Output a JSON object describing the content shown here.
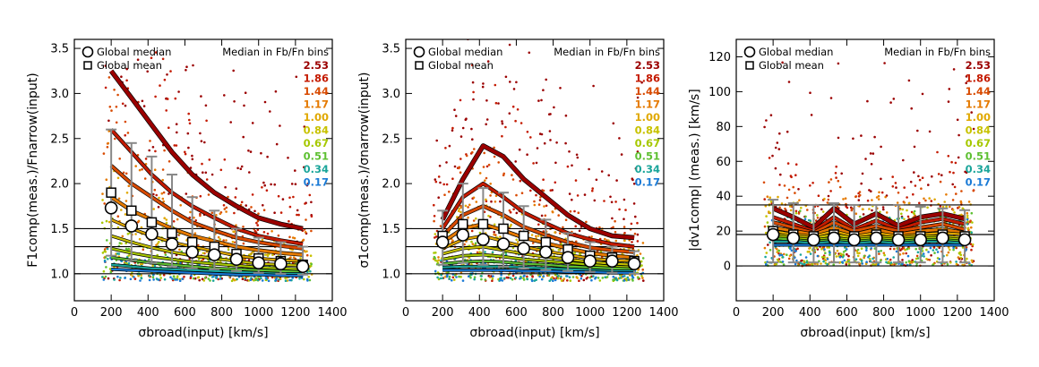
{
  "legend": {
    "global_median": "Global median",
    "global_mean": "Global mean",
    "bins_title": "Median in Fb/Fn bins",
    "bin_labels": [
      "2.53",
      "1.86",
      "1.44",
      "1.17",
      "1.00",
      "0.84",
      "0.67",
      "0.51",
      "0.34",
      "0.17"
    ],
    "bin_colors": [
      "#9b0000",
      "#c41a00",
      "#d84a00",
      "#e57a00",
      "#e0a800",
      "#c8c200",
      "#a6c800",
      "#5ec032",
      "#1aa59a",
      "#1a7ad6"
    ]
  },
  "chart_data": [
    {
      "type": "scatter",
      "xlabel": "σbroad(input)  [km/s]",
      "ylabel": "F1comp(meas.)/Fnarrow(input)",
      "xlim": [
        0,
        1400
      ],
      "ylim": [
        0.7,
        3.6
      ],
      "xticks": [
        "0",
        "200",
        "400",
        "600",
        "800",
        "1000",
        "1200",
        "1400"
      ],
      "yticks": [
        "1.0",
        "1.5",
        "2.0",
        "2.5",
        "3.0",
        "3.5"
      ],
      "hlines": [
        1.0,
        1.3,
        1.5
      ],
      "x": [
        200,
        310,
        420,
        530,
        640,
        760,
        880,
        1000,
        1120,
        1240
      ],
      "global_median": [
        1.73,
        1.53,
        1.44,
        1.33,
        1.24,
        1.21,
        1.16,
        1.12,
        1.11,
        1.08
      ],
      "global_mean": [
        1.9,
        1.7,
        1.57,
        1.45,
        1.35,
        1.3,
        1.22,
        1.17,
        1.14,
        1.1
      ],
      "err_low": [
        1.2,
        1.15,
        1.12,
        1.08,
        1.06,
        1.05,
        1.03,
        1.01,
        1.0,
        0.99
      ],
      "err_high": [
        2.6,
        2.45,
        2.3,
        2.1,
        1.85,
        1.7,
        1.5,
        1.4,
        1.35,
        1.3
      ],
      "bin_medians": [
        [
          3.25,
          2.95,
          2.65,
          2.35,
          2.1,
          1.9,
          1.75,
          1.62,
          1.55,
          1.5
        ],
        [
          2.6,
          2.35,
          2.1,
          1.9,
          1.75,
          1.62,
          1.5,
          1.42,
          1.37,
          1.33
        ],
        [
          2.2,
          2.0,
          1.85,
          1.7,
          1.57,
          1.48,
          1.4,
          1.35,
          1.31,
          1.28
        ],
        [
          1.85,
          1.7,
          1.6,
          1.5,
          1.42,
          1.36,
          1.3,
          1.26,
          1.23,
          1.21
        ],
        [
          1.6,
          1.5,
          1.42,
          1.35,
          1.3,
          1.25,
          1.2,
          1.17,
          1.15,
          1.14
        ],
        [
          1.42,
          1.35,
          1.29,
          1.24,
          1.2,
          1.17,
          1.14,
          1.11,
          1.1,
          1.09
        ],
        [
          1.28,
          1.23,
          1.19,
          1.16,
          1.13,
          1.11,
          1.09,
          1.07,
          1.06,
          1.05
        ],
        [
          1.18,
          1.15,
          1.12,
          1.1,
          1.08,
          1.06,
          1.05,
          1.04,
          1.03,
          1.02
        ],
        [
          1.1,
          1.08,
          1.06,
          1.05,
          1.04,
          1.03,
          1.02,
          1.01,
          1.0,
          1.0
        ],
        [
          1.05,
          1.04,
          1.03,
          1.02,
          1.01,
          1.0,
          0.99,
          0.99,
          0.98,
          0.98
        ]
      ],
      "outlier_ymax": 3.4
    },
    {
      "type": "scatter",
      "xlabel": "σbroad(input)  [km/s]",
      "ylabel": "σ1comp(meas.)/σnarrow(input)",
      "xlim": [
        0,
        1400
      ],
      "ylim": [
        0.7,
        3.6
      ],
      "xticks": [
        "0",
        "200",
        "400",
        "600",
        "800",
        "1000",
        "1200",
        "1400"
      ],
      "yticks": [
        "1.0",
        "1.5",
        "2.0",
        "2.5",
        "3.0",
        "3.5"
      ],
      "hlines": [
        1.0,
        1.3,
        1.5
      ],
      "x": [
        200,
        310,
        420,
        530,
        640,
        760,
        880,
        1000,
        1120,
        1240
      ],
      "global_median": [
        1.35,
        1.43,
        1.38,
        1.33,
        1.28,
        1.24,
        1.18,
        1.14,
        1.14,
        1.11
      ],
      "global_mean": [
        1.42,
        1.55,
        1.55,
        1.5,
        1.42,
        1.35,
        1.27,
        1.2,
        1.18,
        1.14
      ],
      "err_low": [
        1.1,
        1.12,
        1.1,
        1.08,
        1.06,
        1.04,
        1.03,
        1.02,
        1.01,
        1.0
      ],
      "err_high": [
        1.7,
        2.0,
        1.95,
        1.9,
        1.75,
        1.6,
        1.45,
        1.35,
        1.3,
        1.25
      ],
      "bin_medians": [
        [
          1.6,
          2.05,
          2.42,
          2.3,
          2.05,
          1.85,
          1.65,
          1.5,
          1.42,
          1.4
        ],
        [
          1.5,
          1.85,
          2.0,
          1.85,
          1.68,
          1.56,
          1.45,
          1.38,
          1.33,
          1.3
        ],
        [
          1.42,
          1.65,
          1.75,
          1.65,
          1.52,
          1.43,
          1.35,
          1.29,
          1.26,
          1.24
        ],
        [
          1.35,
          1.5,
          1.55,
          1.48,
          1.4,
          1.34,
          1.28,
          1.23,
          1.2,
          1.18
        ],
        [
          1.28,
          1.38,
          1.42,
          1.36,
          1.3,
          1.25,
          1.21,
          1.17,
          1.15,
          1.14
        ],
        [
          1.22,
          1.28,
          1.3,
          1.26,
          1.22,
          1.19,
          1.16,
          1.13,
          1.11,
          1.1
        ],
        [
          1.16,
          1.2,
          1.21,
          1.19,
          1.16,
          1.14,
          1.12,
          1.1,
          1.08,
          1.07
        ],
        [
          1.11,
          1.13,
          1.14,
          1.13,
          1.11,
          1.1,
          1.08,
          1.07,
          1.06,
          1.05
        ],
        [
          1.07,
          1.08,
          1.08,
          1.08,
          1.07,
          1.06,
          1.05,
          1.04,
          1.03,
          1.03
        ],
        [
          1.04,
          1.04,
          1.04,
          1.04,
          1.03,
          1.03,
          1.02,
          1.02,
          1.01,
          1.01
        ]
      ],
      "outlier_ymax": 3.2
    },
    {
      "type": "scatter",
      "xlabel": "σbroad(input)  [km/s]",
      "ylabel": "|dv1comp| (meas.)  [km/s]",
      "xlim": [
        0,
        1400
      ],
      "ylim": [
        -20,
        130
      ],
      "xticks": [
        "0",
        "200",
        "400",
        "600",
        "800",
        "1000",
        "1200",
        "1400"
      ],
      "yticks": [
        "0",
        "20",
        "40",
        "60",
        "80",
        "100",
        "120"
      ],
      "hlines": [
        0,
        18,
        35
      ],
      "x": [
        200,
        310,
        420,
        530,
        640,
        760,
        880,
        1000,
        1120,
        1240
      ],
      "global_median": [
        18,
        16,
        15,
        16,
        15,
        16,
        15,
        15,
        16,
        15
      ],
      "global_mean": [
        20,
        18,
        17,
        18,
        17,
        18,
        17,
        17,
        18,
        17
      ],
      "err_low": [
        2,
        2,
        2,
        2,
        2,
        2,
        2,
        2,
        2,
        2
      ],
      "err_high": [
        38,
        36,
        35,
        36,
        35,
        35,
        35,
        34,
        33,
        32
      ],
      "bin_medians": [
        [
          33,
          28,
          22,
          33,
          24,
          30,
          23,
          28,
          30,
          27
        ],
        [
          28,
          24,
          20,
          28,
          21,
          26,
          21,
          25,
          27,
          24
        ],
        [
          25,
          22,
          19,
          25,
          20,
          23,
          20,
          22,
          24,
          21
        ],
        [
          22,
          20,
          18,
          22,
          18,
          21,
          18,
          20,
          21,
          19
        ],
        [
          20,
          18,
          17,
          20,
          17,
          19,
          17,
          18,
          19,
          18
        ],
        [
          18,
          17,
          16,
          18,
          16,
          17,
          16,
          17,
          17,
          16
        ],
        [
          17,
          16,
          15,
          16,
          15,
          16,
          15,
          16,
          16,
          15
        ],
        [
          16,
          15,
          14,
          15,
          14,
          15,
          14,
          15,
          15,
          14
        ],
        [
          14,
          14,
          13,
          14,
          13,
          14,
          13,
          14,
          14,
          13
        ],
        [
          12,
          12,
          12,
          12,
          12,
          12,
          12,
          12,
          12,
          12
        ]
      ],
      "outlier_ymax": 118
    }
  ]
}
